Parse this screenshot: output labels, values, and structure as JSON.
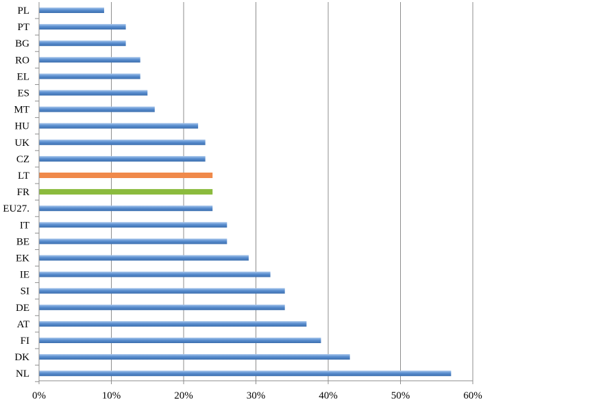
{
  "chart_data": {
    "type": "bar",
    "orientation": "horizontal",
    "categories": [
      "PL",
      "PT",
      "BG",
      "RO",
      "EL",
      "ES",
      "MT",
      "HU",
      "UK",
      "CZ",
      "LT",
      "FR",
      "EU27.",
      "IT",
      "BE",
      "EK",
      "IE",
      "SI",
      "DE",
      "AT",
      "FI",
      "DK",
      "NL"
    ],
    "values": [
      9,
      12,
      12,
      14,
      14,
      15,
      16,
      22,
      23,
      23,
      24,
      24,
      24,
      26,
      26,
      29,
      32,
      34,
      34,
      37,
      39,
      43,
      57
    ],
    "highlight": {
      "LT": "#f0894a",
      "FR": "#8bbb3d"
    },
    "default_color": "#4f86c6",
    "xlim": [
      0,
      60
    ],
    "x_ticks": [
      0,
      10,
      20,
      30,
      40,
      50,
      60
    ],
    "x_tick_labels": [
      "0%",
      "10%",
      "20%",
      "30%",
      "40%",
      "50%",
      "60%"
    ],
    "grid": "vertical",
    "title": "",
    "xlabel": "",
    "ylabel": ""
  }
}
